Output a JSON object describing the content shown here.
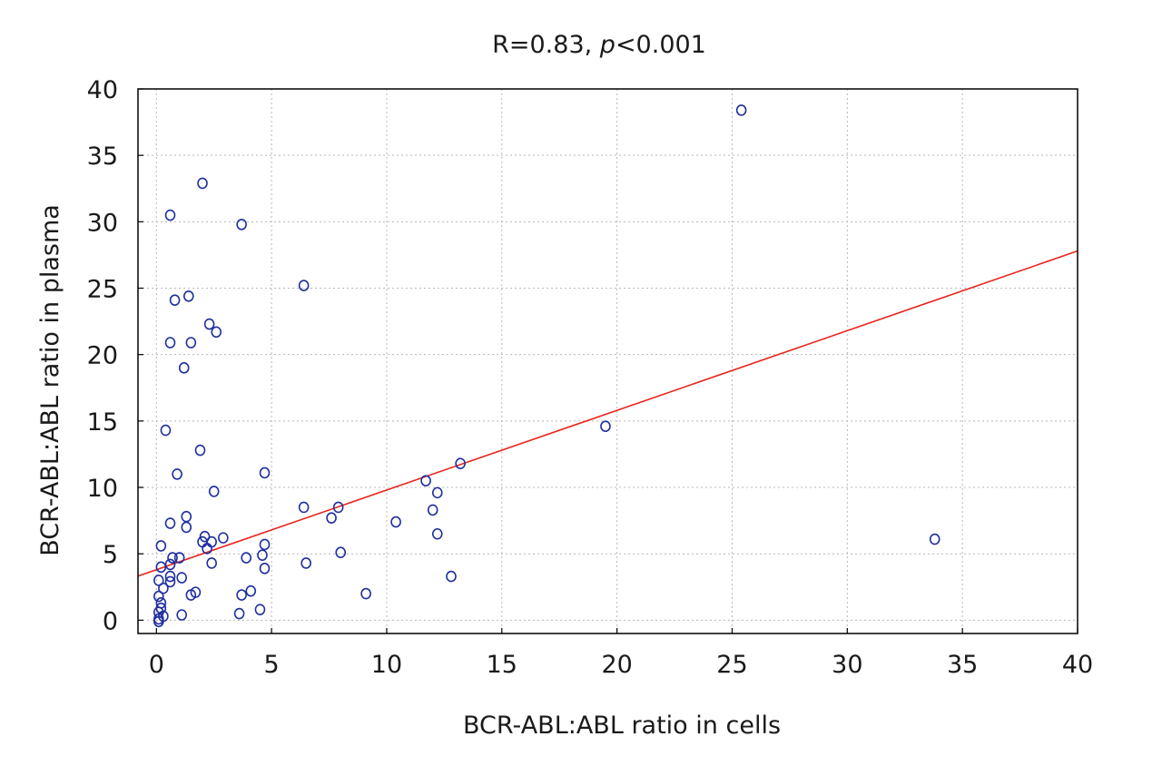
{
  "chart_data": {
    "type": "scatter",
    "title_prefix": "R=0.83, ",
    "title_p": "p",
    "title_suffix": "<0.001",
    "xlabel": "BCR-ABL:ABL ratio in cells",
    "ylabel": "BCR-ABL:ABL ratio in plasma",
    "xlim": [
      -0.8,
      40
    ],
    "ylim": [
      -1,
      40
    ],
    "xticks": [
      0,
      5,
      10,
      15,
      20,
      25,
      30,
      35,
      40
    ],
    "yticks": [
      0,
      5,
      10,
      15,
      20,
      25,
      30,
      35,
      40
    ],
    "grid": true,
    "colors": {
      "point": "#1f2f9f",
      "fit": "#e8251d"
    },
    "fit_line": {
      "intercept": 3.8,
      "slope": 0.6
    },
    "points": [
      [
        25.4,
        38.4
      ],
      [
        2.0,
        32.9
      ],
      [
        0.6,
        30.5
      ],
      [
        3.7,
        29.8
      ],
      [
        6.4,
        25.2
      ],
      [
        0.8,
        24.1
      ],
      [
        1.4,
        24.4
      ],
      [
        2.3,
        22.3
      ],
      [
        2.6,
        21.7
      ],
      [
        0.6,
        20.9
      ],
      [
        1.5,
        20.9
      ],
      [
        1.2,
        19.0
      ],
      [
        19.5,
        14.6
      ],
      [
        0.4,
        14.3
      ],
      [
        1.9,
        12.8
      ],
      [
        13.2,
        11.8
      ],
      [
        4.7,
        11.1
      ],
      [
        0.9,
        11.0
      ],
      [
        11.7,
        10.5
      ],
      [
        2.5,
        9.7
      ],
      [
        12.2,
        9.6
      ],
      [
        6.4,
        8.5
      ],
      [
        7.9,
        8.5
      ],
      [
        12.0,
        8.3
      ],
      [
        1.3,
        7.8
      ],
      [
        7.6,
        7.7
      ],
      [
        10.4,
        7.4
      ],
      [
        0.6,
        7.3
      ],
      [
        1.3,
        7.0
      ],
      [
        12.2,
        6.5
      ],
      [
        2.1,
        6.3
      ],
      [
        2.9,
        6.2
      ],
      [
        33.8,
        6.1
      ],
      [
        2.0,
        5.9
      ],
      [
        2.4,
        5.9
      ],
      [
        4.7,
        5.7
      ],
      [
        0.2,
        5.6
      ],
      [
        2.2,
        5.4
      ],
      [
        8.0,
        5.1
      ],
      [
        4.6,
        4.9
      ],
      [
        1.0,
        4.7
      ],
      [
        0.7,
        4.7
      ],
      [
        3.9,
        4.7
      ],
      [
        6.5,
        4.3
      ],
      [
        2.4,
        4.3
      ],
      [
        0.6,
        4.2
      ],
      [
        0.2,
        4.0
      ],
      [
        4.7,
        3.9
      ],
      [
        0.6,
        3.3
      ],
      [
        1.1,
        3.2
      ],
      [
        12.8,
        3.3
      ],
      [
        0.1,
        3.0
      ],
      [
        0.6,
        2.9
      ],
      [
        0.3,
        2.4
      ],
      [
        4.1,
        2.2
      ],
      [
        1.7,
        2.1
      ],
      [
        1.5,
        1.9
      ],
      [
        3.7,
        1.9
      ],
      [
        9.1,
        2.0
      ],
      [
        0.1,
        1.8
      ],
      [
        0.2,
        1.3
      ],
      [
        0.2,
        0.9
      ],
      [
        4.5,
        0.8
      ],
      [
        0.1,
        0.6
      ],
      [
        3.6,
        0.5
      ],
      [
        1.1,
        0.4
      ],
      [
        0.3,
        0.3
      ],
      [
        0.1,
        0.1
      ],
      [
        0.1,
        -0.1
      ]
    ]
  }
}
